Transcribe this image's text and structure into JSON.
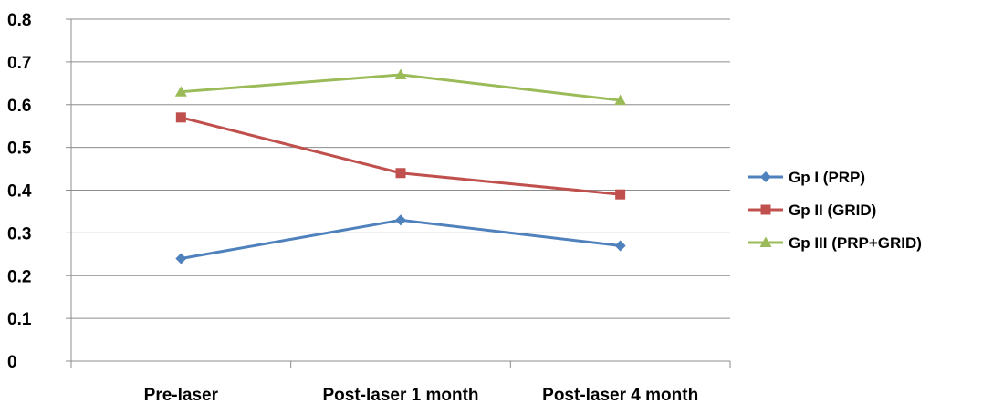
{
  "chart_data": {
    "type": "line",
    "categories": [
      "Pre-laser",
      "Post-laser 1 month",
      "Post-laser 4 month"
    ],
    "series": [
      {
        "name": "Gp I (PRP)",
        "values": [
          0.24,
          0.33,
          0.27
        ],
        "color": "#4F81BD",
        "marker": "diamond"
      },
      {
        "name": "Gp II (GRID)",
        "values": [
          0.57,
          0.44,
          0.39
        ],
        "color": "#C0504D",
        "marker": "square"
      },
      {
        "name": "Gp III (PRP+GRID)",
        "values": [
          0.63,
          0.67,
          0.61
        ],
        "color": "#9BBB59",
        "marker": "triangle"
      }
    ],
    "ylim": [
      0,
      0.8
    ],
    "yticks": [
      "0",
      "0.1",
      "0.2",
      "0.3",
      "0.4",
      "0.5",
      "0.6",
      "0.7",
      "0.8"
    ],
    "grid": true,
    "legend_position": "right"
  }
}
